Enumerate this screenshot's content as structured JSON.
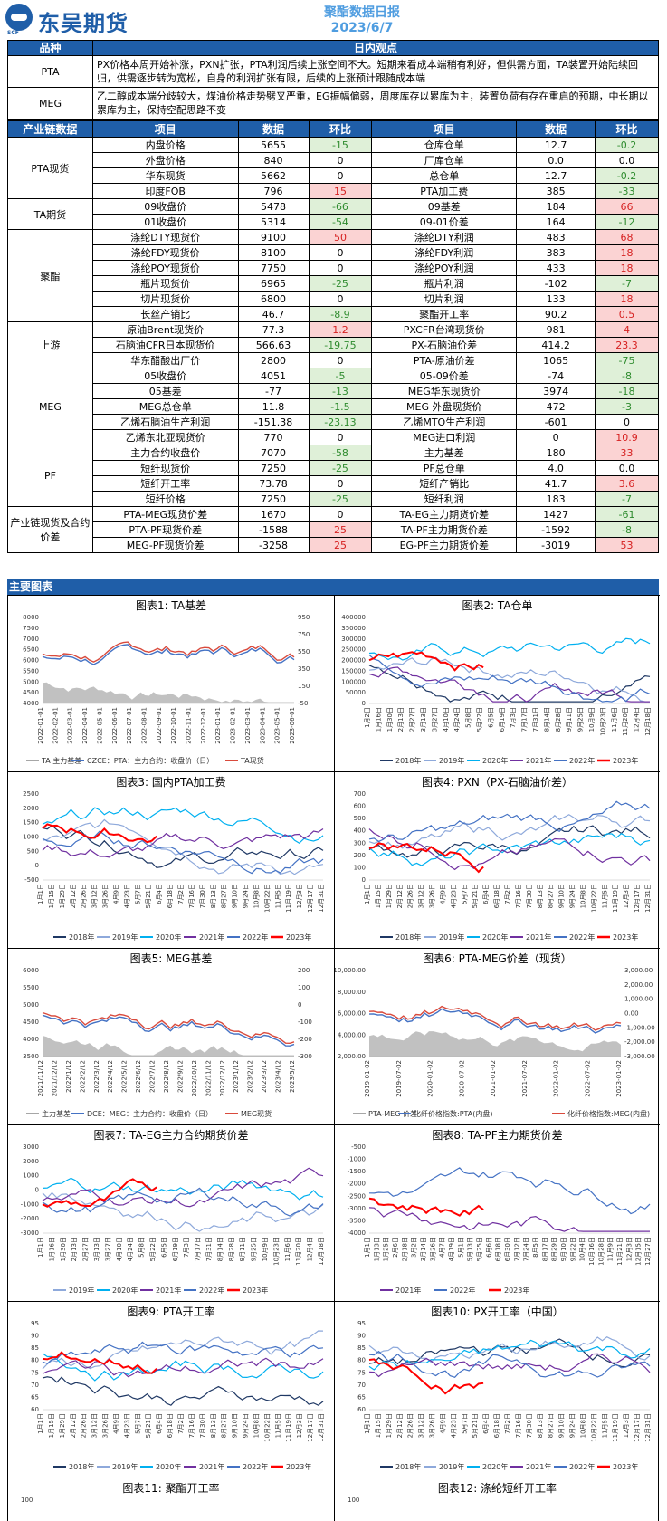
{
  "header": {
    "brand": "东吴期货",
    "brand_sub": "SCF",
    "title": "聚酯数据日报",
    "date": "2023/6/7"
  },
  "view": {
    "col_category": "品种",
    "col_view": "日内观点",
    "rows": [
      {
        "cat": "PTA",
        "text": "PX价格本周开始补涨，PXN扩张，PTA利润后续上涨空间不大。短期来看成本端稍有利好，但供需方面，TA装置开始陆续回归，供需逐步转为宽松，自身的利润扩张有限，后续的上涨预计跟随成本端"
      },
      {
        "cat": "MEG",
        "text": "乙二醇成本端分歧较大，煤油价格走势劈叉严重，EG振幅偏弱，周度库存以累库为主，装置负荷有存在重启的预期，中长期以累库为主，保持空配思路不变"
      }
    ]
  },
  "data_table": {
    "headers": [
      "产业链数据",
      "项目",
      "数据",
      "环比",
      "项目",
      "数据",
      "环比"
    ],
    "groups": [
      {
        "name": "PTA现货",
        "rows": [
          [
            "内盘价格",
            "5655",
            "-15",
            "仓库仓单",
            "12.7",
            "-0.2"
          ],
          [
            "外盘价格",
            "840",
            "0",
            "厂库仓单",
            "0.0",
            "0.0"
          ],
          [
            "华东现货",
            "5662",
            "0",
            "总仓单",
            "12.7",
            "-0.2"
          ],
          [
            "印度FOB",
            "796",
            "15",
            "PTA加工费",
            "385",
            "-33"
          ]
        ]
      },
      {
        "name": "TA期货",
        "rows": [
          [
            "09收盘价",
            "5478",
            "-66",
            "09基差",
            "184",
            "66"
          ],
          [
            "01收盘价",
            "5314",
            "-54",
            "09-01价差",
            "164",
            "-12"
          ]
        ]
      },
      {
        "name": "聚酯",
        "rows": [
          [
            "涤纶DTY现货价",
            "9100",
            "50",
            "涤纶DTY利润",
            "483",
            "68"
          ],
          [
            "涤纶FDY现货价",
            "8100",
            "0",
            "涤纶FDY利润",
            "383",
            "18"
          ],
          [
            "涤纶POY现货价",
            "7750",
            "0",
            "涤纶POY利润",
            "433",
            "18"
          ],
          [
            "瓶片现货价",
            "6965",
            "-25",
            "瓶片利润",
            "-102",
            "-7"
          ],
          [
            "切片现货价",
            "6800",
            "0",
            "切片利润",
            "133",
            "18"
          ],
          [
            "长丝产销比",
            "46.7",
            "-8.9",
            "聚酯开工率",
            "90.2",
            "0.5"
          ]
        ]
      },
      {
        "name": "上游",
        "rows": [
          [
            "原油Brent现货价",
            "77.3",
            "1.2",
            "PXCFR台湾现货价",
            "981",
            "4"
          ],
          [
            "石脑油CFR日本现货价",
            "566.63",
            "-19.75",
            "PX-石脑油价差",
            "414.2",
            "23.3"
          ],
          [
            "华东醋酸出厂价",
            "2800",
            "0",
            "PTA-原油价差",
            "1065",
            "-75"
          ]
        ]
      },
      {
        "name": "MEG",
        "rows": [
          [
            "05收盘价",
            "4051",
            "-5",
            "05-09价差",
            "-74",
            "-8"
          ],
          [
            "05基差",
            "-77",
            "-13",
            "MEG华东现货价",
            "3974",
            "-18"
          ],
          [
            "MEG总仓单",
            "11.8",
            "-1.5",
            "MEG 外盘现货价",
            "472",
            "-3"
          ],
          [
            "乙烯石脑油生产利润",
            "-151.38",
            "-23.13",
            "乙烯MTO生产利润",
            "-601",
            "0"
          ],
          [
            "乙烯东北亚现货价",
            "770",
            "0",
            "MEG进口利润",
            "0",
            "10.9"
          ]
        ]
      },
      {
        "name": "PF",
        "rows": [
          [
            "主力合约收盘价",
            "7070",
            "-58",
            "主力基差",
            "180",
            "33"
          ],
          [
            "短纤现货价",
            "7250",
            "-25",
            "PF总仓单",
            "4.0",
            "0.0"
          ],
          [
            "短纤开工率",
            "73.78",
            "0",
            "短纤产销比",
            "41.7",
            "3.6"
          ],
          [
            "短纤价格",
            "7250",
            "-25",
            "短纤利润",
            "183",
            "-7"
          ]
        ]
      },
      {
        "name": "产业链现货及合约价差",
        "rows": [
          [
            "PTA-MEG现货价差",
            "1670",
            "0",
            "TA-EG主力期货价差",
            "1427",
            "-61"
          ],
          [
            "PTA-PF现货价差",
            "-1588",
            "25",
            "TA-PF主力期货价差",
            "-1592",
            "-8"
          ],
          [
            "MEG-PF现货价差",
            "-3258",
            "25",
            "EG-PF主力期货价差",
            "-3019",
            "53"
          ]
        ]
      }
    ]
  },
  "section_title": "主要图表",
  "charts": [
    {
      "title": "图表1: TA基差",
      "yleft": [
        "8000",
        "7500",
        "7000",
        "6500",
        "6000",
        "5500",
        "5000",
        "4500",
        "4000"
      ],
      "yright": [
        "950",
        "750",
        "550",
        "350",
        "150",
        "-50"
      ],
      "x": [
        "2022-01-01",
        "2022-02-01",
        "2022-03-01",
        "2022-04-01",
        "2022-05-01",
        "2022-06-01",
        "2022-07-01",
        "2022-08-01",
        "2022-09-01",
        "2022-10-01",
        "2022-11-01",
        "2022-12-01",
        "2023-01-01",
        "2023-02-01",
        "2023-03-01",
        "2023-04-01",
        "2023-05-01",
        "2023-06-01"
      ],
      "legend": [
        "TA 主力基差",
        "CZCE：PTA：主力合约：收盘价（日）",
        "TA现货"
      ]
    },
    {
      "title": "图表2: TA仓单",
      "yleft": [
        "400000",
        "350000",
        "300000",
        "250000",
        "200000",
        "150000",
        "100000",
        "50000",
        "0"
      ],
      "x": [
        "1月2日",
        "1月16日",
        "1月30日",
        "2月13日",
        "2月27日",
        "3月13日",
        "3月27日",
        "4月10日",
        "4月24日",
        "5月8日",
        "5月22日",
        "6月5日",
        "6月19日",
        "7月3日",
        "7月17日",
        "7月31日",
        "8月14日",
        "8月28日",
        "9月11日",
        "9月25日",
        "10月9日",
        "10月23日",
        "11月6日",
        "11月20日",
        "12月4日",
        "12月18日"
      ],
      "legend": [
        "2018年",
        "2019年",
        "2020年",
        "2021年",
        "2022年",
        "2023年"
      ]
    },
    {
      "title": "图表3: 国内PTA加工费",
      "yleft": [
        "2500",
        "2000",
        "1500",
        "1000",
        "500",
        "0",
        "-500"
      ],
      "x": [
        "1月1日",
        "1月15日",
        "1月29日",
        "2月12日",
        "2月26日",
        "3月12日",
        "3月26日",
        "4月9日",
        "4月23日",
        "5月7日",
        "5月21日",
        "6月4日",
        "6月18日",
        "7月2日",
        "7月16日",
        "7月30日",
        "8月13日",
        "8月27日",
        "9月10日",
        "9月24日",
        "10月8日",
        "10月22日",
        "11月5日",
        "11月19日",
        "12月3日",
        "12月17日",
        "12月31日"
      ],
      "legend": [
        "2018年",
        "2019年",
        "2020年",
        "2021年",
        "2022年",
        "2023年"
      ]
    },
    {
      "title": "图表4: PXN（PX-石脑油价差）",
      "yleft": [
        "700",
        "600",
        "500",
        "400",
        "300",
        "200",
        "100",
        "0"
      ],
      "x": [
        "1月1日",
        "1月15日",
        "1月29日",
        "2月12日",
        "2月26日",
        "3月12日",
        "3月26日",
        "4月9日",
        "4月23日",
        "5月7日",
        "5月21日",
        "6月4日",
        "6月18日",
        "7月2日",
        "7月16日",
        "7月30日",
        "8月13日",
        "8月27日",
        "9月10日",
        "9月24日",
        "10月8日",
        "10月22日",
        "11月5日",
        "11月19日",
        "12月3日",
        "12月17日",
        "12月31日"
      ],
      "legend": [
        "2018年",
        "2019年",
        "2020年",
        "2021年",
        "2022年",
        "2023年"
      ]
    },
    {
      "title": "图表5: MEG基差",
      "yleft": [
        "6000",
        "5500",
        "5000",
        "4500",
        "4000",
        "3500"
      ],
      "yright": [
        "200",
        "100",
        "0",
        "-100",
        "-200",
        "-300"
      ],
      "x": [
        "2021/11/12",
        "2021/12/12",
        "2022/1/12",
        "2022/2/12",
        "2022/3/12",
        "2022/4/12",
        "2022/5/12",
        "2022/6/12",
        "2022/7/12",
        "2022/8/12",
        "2022/9/12",
        "2022/10/12",
        "2022/11/12",
        "2022/12/12",
        "2023/1/12",
        "2023/2/12",
        "2023/3/12",
        "2023/4/12",
        "2023/5/12"
      ],
      "legend": [
        "主力基差",
        "DCE：MEG：主力合约：收盘价（日）",
        "MEG现货"
      ]
    },
    {
      "title": "图表6: PTA-MEG价差（现货）",
      "yleft": [
        "10,000.00",
        "8,000.00",
        "6,000.00",
        "4,000.00",
        "2,000.00"
      ],
      "yright": [
        "3,000.00",
        "2,000.00",
        "1,000.00",
        "0.00",
        "-1,000.00",
        "-2,000.00",
        "-3,000.00"
      ],
      "x": [
        "2019-01-02",
        "2019-07-02",
        "2020-01-02",
        "2020-07-02",
        "2021-01-02",
        "2021-07-02",
        "2022-01-02",
        "2022-07-02",
        "2023-01-02"
      ],
      "legend": [
        "PTA-MEG 价差",
        "化纤价格指数:PTA(内盘)",
        "化纤价格指数:MEG(内盘)"
      ]
    },
    {
      "title": "图表7: TA-EG主力合约期货价差",
      "yleft": [
        "3000",
        "2000",
        "1000",
        "0",
        "-1000",
        "-2000",
        "-3000"
      ],
      "x": [
        "1月1日",
        "1月16日",
        "1月30日",
        "2月13日",
        "2月27日",
        "3月13日",
        "3月27日",
        "4月10日",
        "4月24日",
        "5月8日",
        "5月22日",
        "6月5日",
        "6月19日",
        "7月3日",
        "7月17日",
        "7月31日",
        "8月14日",
        "8月28日",
        "9月11日",
        "9月25日",
        "10月9日",
        "10月23日",
        "11月6日",
        "11月20日",
        "12月4日",
        "12月18日"
      ],
      "legend": [
        "2019年",
        "2020年",
        "2021年",
        "2022年",
        "2023年"
      ]
    },
    {
      "title": "图表8: TA-PF主力期货价差",
      "yleft": [
        "-500",
        "-1000",
        "-1500",
        "-2000",
        "-2500",
        "-3000",
        "-3500",
        "-4000"
      ],
      "x": [
        "1月1日",
        "1月13日",
        "1月25日",
        "2月6日",
        "2月18日",
        "3月2日",
        "3月14日",
        "3月26日",
        "4月7日",
        "4月19日",
        "5月1日",
        "5月13日",
        "5月25日",
        "6月6日",
        "6月18日",
        "6月30日",
        "7月12日",
        "7月24日",
        "8月5日",
        "8月17日",
        "8月29日",
        "9月10日",
        "9月22日",
        "10月4日",
        "10月16日",
        "10月28日",
        "11月9日",
        "11月21日",
        "12月3日",
        "12月15日",
        "12月27日"
      ],
      "legend": [
        "2021年",
        "2022年",
        "2023年"
      ]
    },
    {
      "title": "图表9: PTA开工率",
      "yleft": [
        "95",
        "90",
        "85",
        "80",
        "75",
        "70",
        "65",
        "60"
      ],
      "x": [
        "1月1日",
        "1月15日",
        "1月29日",
        "2月12日",
        "2月26日",
        "3月12日",
        "3月26日",
        "4月9日",
        "4月23日",
        "5月7日",
        "5月21日",
        "6月4日",
        "6月18日",
        "7月2日",
        "7月16日",
        "7月30日",
        "8月13日",
        "8月27日",
        "9月10日",
        "9月24日",
        "10月8日",
        "10月22日",
        "11月5日",
        "11月19日",
        "12月3日",
        "12月17日",
        "12月31日"
      ],
      "legend": [
        "2018年",
        "2019年",
        "2020年",
        "2021年",
        "2022年",
        "2023年"
      ]
    },
    {
      "title": "图表10: PX开工率（中国）",
      "yleft": [
        "95",
        "90",
        "85",
        "80",
        "75",
        "70",
        "65",
        "60"
      ],
      "x": [
        "1月1日",
        "1月15日",
        "1月29日",
        "2月12日",
        "2月26日",
        "3月12日",
        "3月26日",
        "4月9日",
        "4月23日",
        "5月7日",
        "5月21日",
        "6月4日",
        "6月18日",
        "7月2日",
        "7月16日",
        "7月30日",
        "8月13日",
        "8月27日",
        "9月10日",
        "9月24日",
        "10月8日",
        "10月22日",
        "11月5日",
        "11月19日",
        "12月3日",
        "12月17日",
        "12月31日"
      ],
      "legend": [
        "2018年",
        "2019年",
        "2020年",
        "2021年",
        "2022年",
        "2023年"
      ]
    },
    {
      "title": "图表11: 聚酯开工率",
      "yleft": [
        "100"
      ],
      "x": [],
      "legend": []
    },
    {
      "title": "图表12: 涤纶短纤开工率",
      "yleft": [
        "100"
      ],
      "x": [],
      "legend": []
    }
  ],
  "colors": {
    "brand": "#1f5ea8",
    "y2018": "#1f3864",
    "y2019": "#8ea9db",
    "y2020": "#00b0f0",
    "y2021": "#7030a0",
    "y2022": "#4472c4",
    "y2023": "#ff0000",
    "area": "#a6a6a6",
    "red": "#d94a3c",
    "blue": "#4472c4"
  }
}
